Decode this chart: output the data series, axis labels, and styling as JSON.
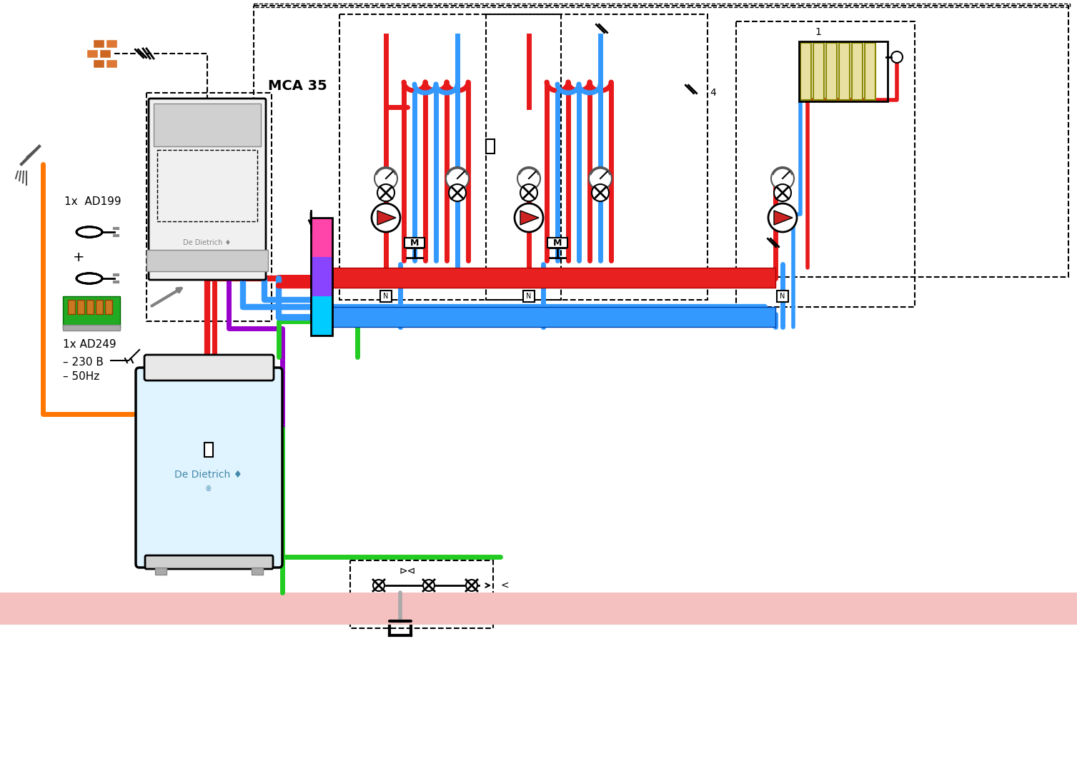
{
  "title": "",
  "bg_color": "#ffffff",
  "pipe_red": "#e8191a",
  "pipe_blue": "#3399ff",
  "pipe_orange": "#ff7700",
  "pipe_green": "#22cc22",
  "pipe_purple": "#9900cc",
  "pipe_cyan": "#00ccff",
  "pipe_pink": "#ff66aa",
  "collector_red": "#e8191a",
  "collector_blue": "#4488ff",
  "floor_color": "#f5a0a0",
  "boiler_outline": "#222222",
  "boiler_body": "#e8f4ff",
  "label_mca": "MCA 35",
  "label_ad199": "AD199",
  "label_ad249": "1x AD249",
  "label_1x": "1x",
  "label_230v": "230 B",
  "label_50hz": "50Hz",
  "label_dedietrich": "De Dietrich",
  "label_plus": "+"
}
